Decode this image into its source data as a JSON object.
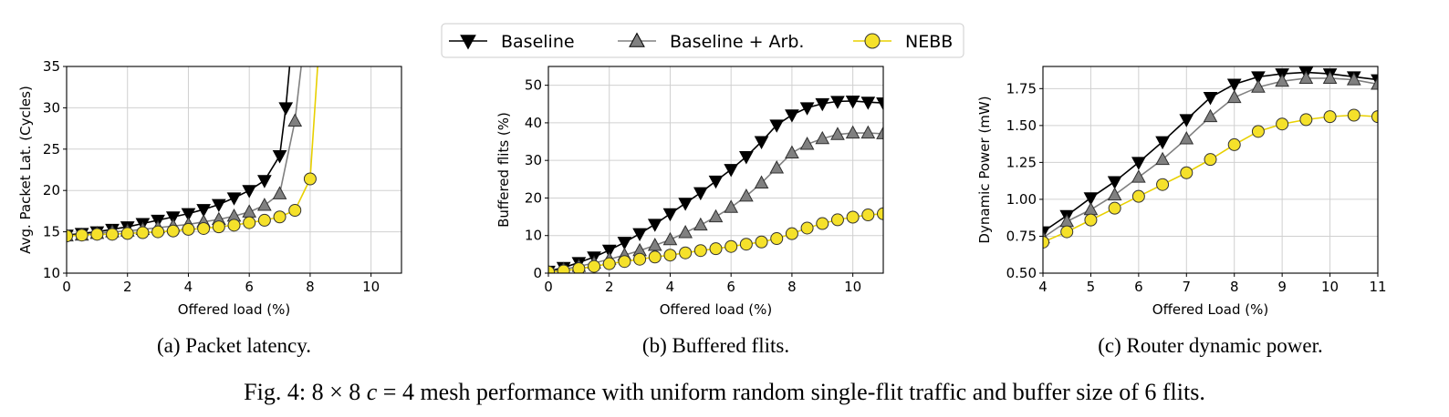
{
  "legend": {
    "items": [
      {
        "label": "Baseline",
        "color": "#000000",
        "marker": "triangle-down",
        "fill": "#000000"
      },
      {
        "label": "Baseline + Arb.",
        "color": "#808080",
        "marker": "triangle-up",
        "fill": "#808080"
      },
      {
        "label": "NEBB",
        "color": "#e8d000",
        "marker": "circle",
        "fill": "#f5e12a"
      }
    ]
  },
  "chart_data": [
    {
      "type": "line",
      "caption": "(a) Packet latency.",
      "xlabel": "Offered load (%)",
      "ylabel": "Avg. Packet Lat. (Cycles)",
      "xlim": [
        0,
        11
      ],
      "ylim": [
        10,
        35
      ],
      "xticks": [
        0,
        2,
        4,
        6,
        8,
        10
      ],
      "yticks": [
        10,
        15,
        20,
        25,
        30,
        35
      ],
      "grid": true,
      "series": [
        {
          "name": "Baseline",
          "x": [
            0,
            0.5,
            1,
            1.5,
            2,
            2.5,
            3,
            3.5,
            4,
            4.5,
            5,
            5.5,
            6,
            6.5,
            7,
            7.2,
            7.4
          ],
          "y": [
            14.6,
            14.8,
            15.0,
            15.3,
            15.6,
            16.0,
            16.4,
            16.8,
            17.2,
            17.7,
            18.3,
            19.1,
            20.0,
            21.2,
            24.2,
            30.0,
            38.0
          ]
        },
        {
          "name": "Baseline + Arb.",
          "x": [
            0,
            0.5,
            1,
            1.5,
            2,
            2.5,
            3,
            3.5,
            4,
            4.5,
            5,
            5.5,
            6,
            6.5,
            7,
            7.5,
            7.8
          ],
          "y": [
            14.5,
            14.6,
            14.8,
            15.0,
            15.1,
            15.3,
            15.5,
            15.7,
            15.9,
            16.2,
            16.5,
            16.9,
            17.4,
            18.2,
            19.6,
            28.4,
            38.0
          ]
        },
        {
          "name": "NEBB",
          "x": [
            0,
            0.5,
            1,
            1.5,
            2,
            2.5,
            3,
            3.5,
            4,
            4.5,
            5,
            5.5,
            6,
            6.5,
            7,
            7.5,
            8,
            8.3
          ],
          "y": [
            14.5,
            14.6,
            14.7,
            14.7,
            14.8,
            14.9,
            15.0,
            15.1,
            15.3,
            15.4,
            15.6,
            15.8,
            16.1,
            16.4,
            16.8,
            17.6,
            21.4,
            38.0
          ]
        }
      ]
    },
    {
      "type": "line",
      "caption": "(b) Buffered flits.",
      "xlabel": "Offered load (%)",
      "ylabel": "Buffered flits (%)",
      "xlim": [
        0,
        11
      ],
      "ylim": [
        0,
        55
      ],
      "xticks": [
        0,
        2,
        4,
        6,
        8,
        10
      ],
      "yticks": [
        0,
        10,
        20,
        30,
        40,
        50
      ],
      "grid": true,
      "series": [
        {
          "name": "Baseline",
          "x": [
            0,
            0.5,
            1,
            1.5,
            2,
            2.5,
            3,
            3.5,
            4,
            4.5,
            5,
            5.5,
            6,
            6.5,
            7,
            7.5,
            8,
            8.5,
            9,
            9.5,
            10,
            10.5,
            11
          ],
          "y": [
            0.5,
            1.5,
            2.8,
            4.3,
            6.1,
            8.2,
            10.5,
            13.0,
            15.8,
            18.6,
            21.4,
            24.5,
            27.6,
            31.0,
            35.0,
            39.4,
            42.1,
            44.0,
            45.1,
            45.7,
            45.8,
            45.5,
            45.3
          ]
        },
        {
          "name": "Baseline + Arb.",
          "x": [
            0,
            0.5,
            1,
            1.5,
            2,
            2.5,
            3,
            3.5,
            4,
            4.5,
            5,
            5.5,
            6,
            6.5,
            7,
            7.5,
            8,
            8.5,
            9,
            9.5,
            10,
            10.5,
            11
          ],
          "y": [
            0.3,
            1.0,
            1.8,
            2.7,
            3.7,
            4.8,
            6.0,
            7.4,
            8.9,
            10.8,
            12.8,
            15.0,
            17.5,
            20.5,
            24.0,
            28.0,
            32.0,
            34.3,
            35.8,
            36.9,
            37.3,
            37.3,
            37.1
          ]
        },
        {
          "name": "NEBB",
          "x": [
            0,
            0.5,
            1,
            1.5,
            2,
            2.5,
            3,
            3.5,
            4,
            4.5,
            5,
            5.5,
            6,
            6.5,
            7,
            7.5,
            8,
            8.5,
            9,
            9.5,
            10,
            10.5,
            11
          ],
          "y": [
            0.3,
            0.6,
            1.2,
            1.8,
            2.5,
            3.1,
            3.7,
            4.3,
            4.8,
            5.4,
            6.0,
            6.5,
            7.1,
            7.7,
            8.3,
            9.2,
            10.5,
            12.0,
            13.2,
            14.2,
            14.9,
            15.5,
            15.8
          ]
        }
      ]
    },
    {
      "type": "line",
      "caption": "(c) Router dynamic power.",
      "xlabel": "Offered Load (%)",
      "ylabel": "Dynamic Power (mW)",
      "xlim": [
        4,
        11
      ],
      "ylim": [
        0.5,
        1.9
      ],
      "xticks": [
        4,
        5,
        6,
        7,
        8,
        9,
        10,
        11
      ],
      "yticks": [
        "0.50",
        "0.75",
        "1.00",
        "1.25",
        "1.50",
        "1.75"
      ],
      "grid": true,
      "series": [
        {
          "name": "Baseline",
          "x": [
            4,
            4.5,
            5,
            5.5,
            6,
            6.5,
            7,
            7.5,
            8,
            8.5,
            9,
            9.5,
            10,
            10.5,
            11
          ],
          "y": [
            0.78,
            0.89,
            1.01,
            1.12,
            1.25,
            1.39,
            1.54,
            1.69,
            1.78,
            1.83,
            1.85,
            1.86,
            1.85,
            1.83,
            1.81
          ]
        },
        {
          "name": "Baseline + Arb.",
          "x": [
            4,
            4.5,
            5,
            5.5,
            6,
            6.5,
            7,
            7.5,
            8,
            8.5,
            9,
            9.5,
            10,
            10.5,
            11
          ],
          "y": [
            0.74,
            0.85,
            0.93,
            1.03,
            1.15,
            1.27,
            1.41,
            1.56,
            1.69,
            1.76,
            1.8,
            1.82,
            1.82,
            1.81,
            1.78
          ]
        },
        {
          "name": "NEBB",
          "x": [
            4,
            4.5,
            5,
            5.5,
            6,
            6.5,
            7,
            7.5,
            8,
            8.5,
            9,
            9.5,
            10,
            10.5,
            11
          ],
          "y": [
            0.71,
            0.78,
            0.86,
            0.94,
            1.02,
            1.1,
            1.18,
            1.27,
            1.37,
            1.46,
            1.51,
            1.54,
            1.56,
            1.57,
            1.56
          ]
        }
      ]
    }
  ],
  "figure_caption": {
    "prefix": "Fig. 4: 8 × 8",
    "var": "c",
    "middle": " = 4 mesh performance with uniform random single-flit traffic and buffer size of 6 flits."
  }
}
